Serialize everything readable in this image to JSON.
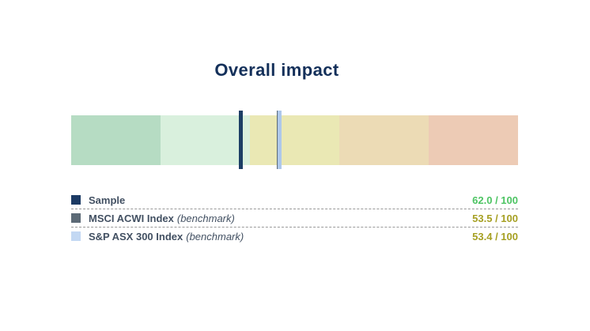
{
  "colors": {
    "background": "#ffffff",
    "title": "#14305a",
    "label": "#425062",
    "separator": "#999999"
  },
  "chart_data": {
    "type": "bar",
    "subtype": "bullet-gauge-scale",
    "title": "Overall impact",
    "scale": {
      "min": 0,
      "max": 100,
      "orientation": "horizontal",
      "direction": "high-values-at-left",
      "grid": false,
      "axis_labels_visible": false
    },
    "bands": [
      {
        "range": [
          100,
          80
        ],
        "color": "#b6dcc3"
      },
      {
        "range": [
          80,
          60
        ],
        "color": "#d9f0dd"
      },
      {
        "range": [
          60,
          40
        ],
        "color": "#eae8b4"
      },
      {
        "range": [
          40,
          20
        ],
        "color": "#ecdbb5"
      },
      {
        "range": [
          20,
          0
        ],
        "color": "#edcbb5"
      }
    ],
    "legend_position": "bottom",
    "series": [
      {
        "name": "Sample",
        "qualifier": "",
        "value": 62.0,
        "max": 100,
        "display": "62.0 / 100",
        "marker_color": "#1c3f66",
        "swatch_color": "#1c3a64",
        "value_color": "#4dc463",
        "z": 3
      },
      {
        "name": "MSCI ACWI Index",
        "qualifier": "(benchmark)",
        "value": 53.5,
        "max": 100,
        "display": "53.5 / 100",
        "marker_color": "#5c6a76",
        "swatch_color": "#5c6a76",
        "value_color": "#a6a023",
        "z": 1
      },
      {
        "name": "S&P ASX 300 Index",
        "qualifier": "(benchmark)",
        "value": 53.4,
        "max": 100,
        "display": "53.4 / 100",
        "marker_color": "#aec8ea",
        "swatch_color": "#c3d8f3",
        "value_color": "#a6a023",
        "z": 2
      }
    ]
  }
}
